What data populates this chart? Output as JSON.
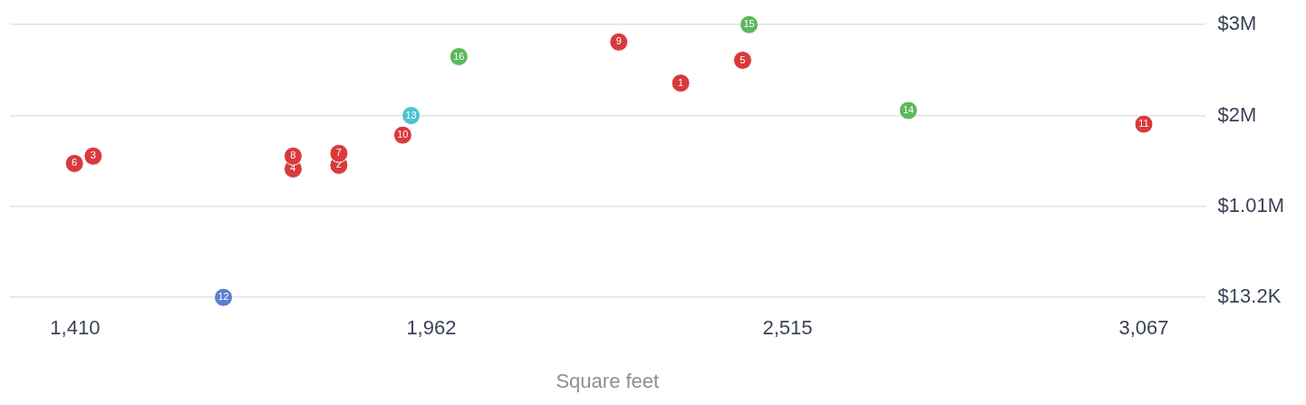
{
  "chart_data": {
    "type": "scatter",
    "xlabel": "Square feet",
    "x": [
      2349,
      1819,
      1438,
      1748,
      2445,
      1409,
      1819,
      1748,
      2253,
      1918,
      3067,
      1640,
      1931,
      2702,
      2455,
      2005
    ],
    "values": [
      2360000,
      1460000,
      1560000,
      1420000,
      2610000,
      1480000,
      1590000,
      1560000,
      2810000,
      1790000,
      1910000,
      13200,
      2004400,
      2060000,
      3000000,
      2650000
    ],
    "colors": [
      "#d93a3c",
      "#d93a3c",
      "#d93a3c",
      "#d93a3c",
      "#d93a3c",
      "#d93a3c",
      "#d93a3c",
      "#d93a3c",
      "#d93a3c",
      "#d93a3c",
      "#d93a3c",
      "#5b7fcf",
      "#4cc4d2",
      "#5cb85c",
      "#5cb85c",
      "#5cb85c"
    ],
    "annotations": [
      {
        "text": "1",
        "x": 2349,
        "y": 2360000
      },
      {
        "text": "2",
        "x": 1819,
        "y": 1460000
      },
      {
        "text": "3",
        "x": 1438,
        "y": 1560000
      },
      {
        "text": "4",
        "x": 1748,
        "y": 1420000
      },
      {
        "text": "5",
        "x": 2445,
        "y": 2610000
      },
      {
        "text": "6",
        "x": 1409,
        "y": 1480000
      },
      {
        "text": "7",
        "x": 1819,
        "y": 1590000
      },
      {
        "text": "8",
        "x": 1748,
        "y": 1560000
      },
      {
        "text": "9",
        "x": 2253,
        "y": 2810000
      },
      {
        "text": "10",
        "x": 1918,
        "y": 1790000
      },
      {
        "text": "11",
        "x": 3067,
        "y": 1910000
      },
      {
        "text": "12",
        "x": 1640,
        "y": 13200
      },
      {
        "text": "13",
        "x": 1931,
        "y": 2004400
      },
      {
        "text": "14",
        "x": 2702,
        "y": 2060000
      },
      {
        "text": "15",
        "x": 2455,
        "y": 3000000
      },
      {
        "text": "16",
        "x": 2005,
        "y": 2650000
      }
    ],
    "xlim": [
      1309,
      3162
    ],
    "ylim": [
      13200,
      3000000
    ],
    "xticks": [
      {
        "value": 1410,
        "label": "1,410"
      },
      {
        "value": 1962.33,
        "label": "1,962"
      },
      {
        "value": 2514.67,
        "label": "2,515"
      },
      {
        "value": 3067,
        "label": "3,067"
      }
    ],
    "yticks": [
      {
        "value": 13200,
        "label": "$13.2K"
      },
      {
        "value": 1008800,
        "label": "$1.01M"
      },
      {
        "value": 2004400,
        "label": "$2M"
      },
      {
        "value": 3000000,
        "label": "$3M"
      }
    ],
    "grid": "y",
    "legend": false,
    "marker": "circle"
  }
}
